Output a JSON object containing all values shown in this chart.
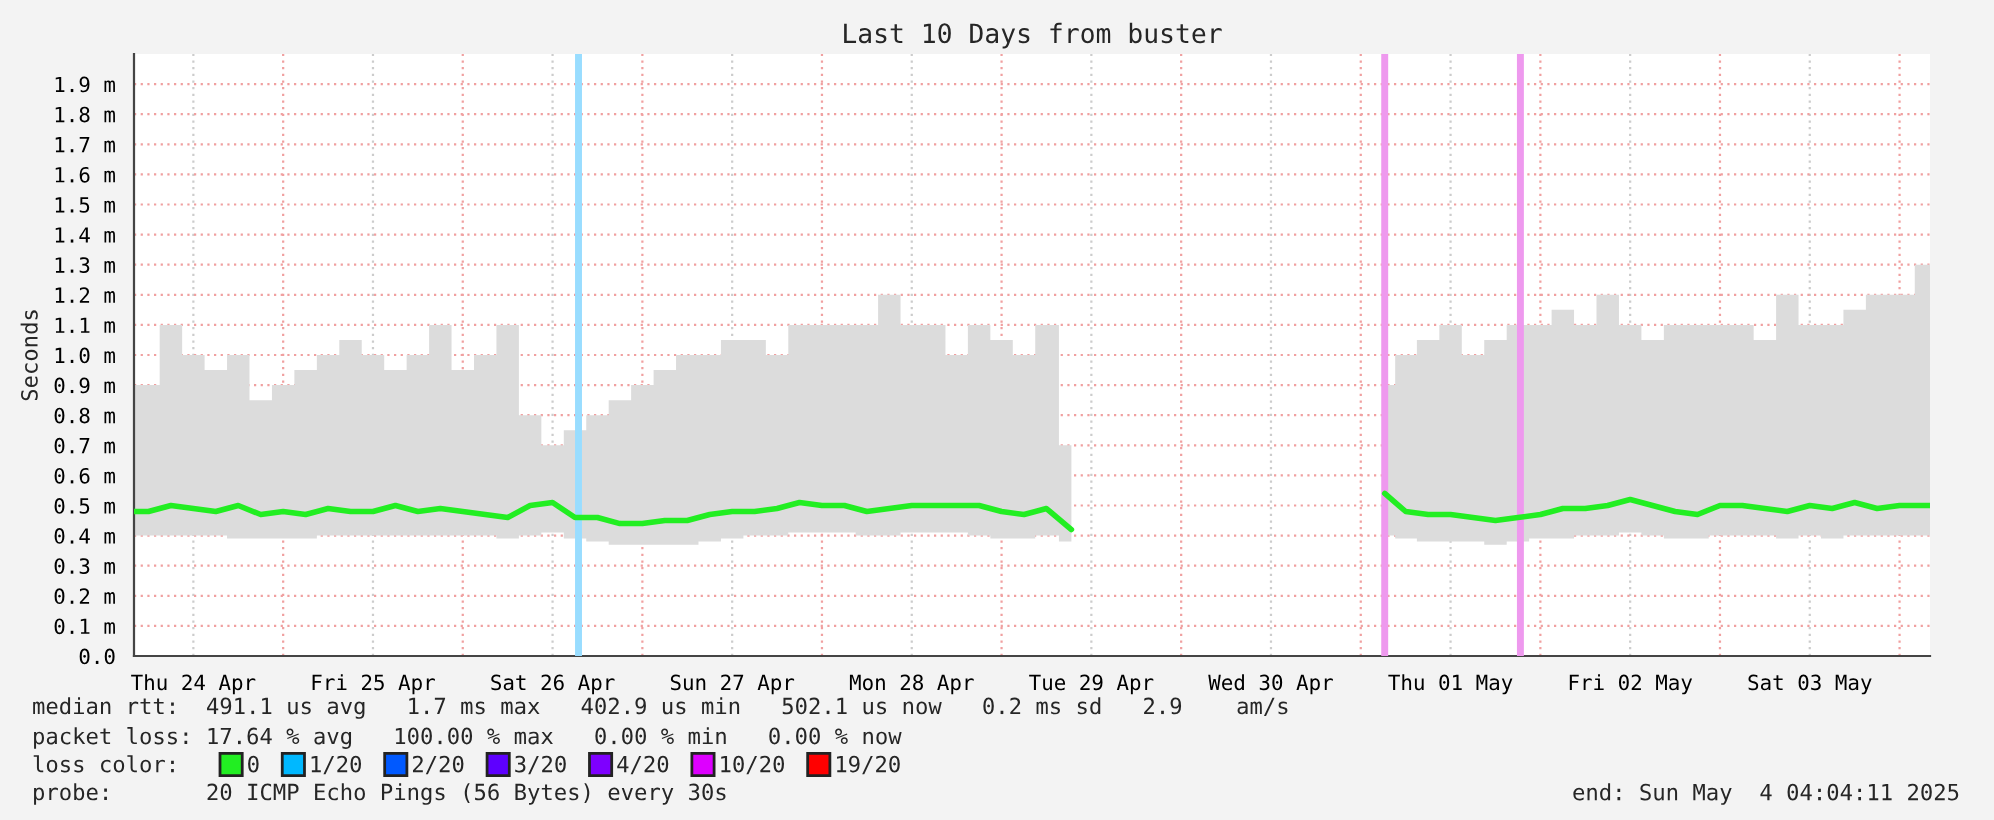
{
  "chart_data": {
    "type": "line",
    "title": "Last 10 Days from buster",
    "ylabel": "Seconds",
    "x": [
      "2025-04-24T04:04",
      "2025-04-24T06:00",
      "2025-04-24T09:00",
      "2025-04-24T12:00",
      "2025-04-24T15:00",
      "2025-04-24T18:00",
      "2025-04-24T21:00",
      "2025-04-25T00:00",
      "2025-04-25T03:00",
      "2025-04-25T06:00",
      "2025-04-25T09:00",
      "2025-04-25T12:00",
      "2025-04-25T15:00",
      "2025-04-25T18:00",
      "2025-04-25T21:00",
      "2025-04-26T00:00",
      "2025-04-26T03:00",
      "2025-04-26T06:00",
      "2025-04-26T09:00",
      "2025-04-26T12:00",
      "2025-04-26T15:00",
      "2025-04-26T18:00",
      "2025-04-26T21:00",
      "2025-04-27T00:00",
      "2025-04-27T03:00",
      "2025-04-27T06:00",
      "2025-04-27T09:00",
      "2025-04-27T12:00",
      "2025-04-27T15:00",
      "2025-04-27T18:00",
      "2025-04-27T21:00",
      "2025-04-28T00:00",
      "2025-04-28T03:00",
      "2025-04-28T06:00",
      "2025-04-28T09:00",
      "2025-04-28T12:00",
      "2025-04-28T15:00",
      "2025-04-28T18:00",
      "2025-04-28T21:00",
      "2025-04-29T00:00",
      "2025-04-29T03:00",
      "2025-04-29T06:00",
      "2025-04-29T09:20",
      "2025-04-30T12:00",
      "2025-05-01T03:12",
      "2025-05-01T06:00",
      "2025-05-01T09:00",
      "2025-05-01T12:00",
      "2025-05-01T15:00",
      "2025-05-01T18:00",
      "2025-05-01T21:00",
      "2025-05-02T00:00",
      "2025-05-02T03:00",
      "2025-05-02T06:00",
      "2025-05-02T09:00",
      "2025-05-02T12:00",
      "2025-05-02T15:00",
      "2025-05-02T18:00",
      "2025-05-02T21:00",
      "2025-05-03T00:00",
      "2025-05-03T03:00",
      "2025-05-03T06:00",
      "2025-05-03T09:00",
      "2025-05-03T12:00",
      "2025-05-03T15:00",
      "2025-05-03T18:00",
      "2025-05-03T21:00",
      "2025-05-04T00:00",
      "2025-05-04T04:04"
    ],
    "series": [
      {
        "name": "0",
        "color": "#22ee22",
        "values": [
          0.48,
          0.48,
          0.5,
          0.49,
          0.48,
          0.5,
          0.47,
          0.48,
          0.47,
          0.49,
          0.48,
          0.48,
          0.5,
          0.48,
          0.49,
          0.48,
          0.47,
          0.46,
          0.5,
          0.51,
          0.46,
          0.46,
          0.44,
          0.44,
          0.45,
          0.45,
          0.47,
          0.48,
          0.48,
          0.49,
          0.51,
          0.5,
          0.5,
          0.48,
          0.49,
          0.5,
          0.5,
          0.5,
          0.5,
          0.48,
          0.47,
          0.49,
          0.42,
          null,
          0.54,
          0.48,
          0.47,
          0.47,
          0.46,
          0.45,
          0.46,
          0.47,
          0.49,
          0.49,
          0.5,
          0.52,
          0.5,
          0.48,
          0.47,
          0.5,
          0.5,
          0.49,
          0.48,
          0.5,
          0.49,
          0.51,
          0.49,
          0.5,
          0.5
        ],
        "lower": [
          0.4,
          0.4,
          0.4,
          0.4,
          0.4,
          0.39,
          0.39,
          0.39,
          0.39,
          0.4,
          0.4,
          0.4,
          0.4,
          0.4,
          0.4,
          0.4,
          0.4,
          0.39,
          0.4,
          0.41,
          0.39,
          0.38,
          0.37,
          0.37,
          0.37,
          0.37,
          0.38,
          0.39,
          0.4,
          0.4,
          0.41,
          0.41,
          0.41,
          0.4,
          0.4,
          0.41,
          0.41,
          0.41,
          0.4,
          0.39,
          0.39,
          0.4,
          0.38,
          null,
          0.4,
          0.39,
          0.38,
          0.38,
          0.38,
          0.37,
          0.38,
          0.39,
          0.39,
          0.4,
          0.4,
          0.41,
          0.4,
          0.39,
          0.39,
          0.4,
          0.4,
          0.4,
          0.39,
          0.4,
          0.39,
          0.4,
          0.4,
          0.4,
          0.4
        ],
        "upper": [
          0.9,
          0.9,
          1.1,
          1.0,
          0.95,
          1.0,
          0.85,
          0.9,
          0.95,
          1.0,
          1.05,
          1.0,
          0.95,
          1.0,
          1.1,
          0.95,
          1.0,
          1.1,
          0.8,
          0.7,
          0.75,
          0.8,
          0.85,
          0.9,
          0.95,
          1.0,
          1.0,
          1.05,
          1.05,
          1.0,
          1.1,
          1.1,
          1.1,
          1.1,
          1.2,
          1.1,
          1.1,
          1.0,
          1.1,
          1.05,
          1.0,
          1.1,
          0.7,
          null,
          0.9,
          1.0,
          1.05,
          1.1,
          1.0,
          1.05,
          1.1,
          1.1,
          1.15,
          1.1,
          1.2,
          1.1,
          1.05,
          1.1,
          1.1,
          1.1,
          1.1,
          1.05,
          1.2,
          1.1,
          1.1,
          1.15,
          1.2,
          1.2,
          1.3
        ]
      },
      {
        "name": "1/20",
        "color": "#00b8ff",
        "values": [
          null,
          null,
          null,
          null,
          null,
          null,
          null,
          null,
          null,
          null,
          null,
          null,
          null,
          null,
          null,
          null,
          null,
          null,
          null,
          null,
          null,
          null,
          null,
          null,
          null,
          null,
          null,
          null,
          null,
          null,
          null,
          null,
          null,
          null,
          null,
          null,
          null,
          null,
          null,
          null,
          null,
          null,
          null,
          null,
          null,
          null,
          null,
          null,
          null,
          null,
          null,
          null,
          null,
          null,
          null,
          null,
          null,
          null,
          null,
          null,
          null,
          null,
          null,
          null,
          null,
          null,
          null,
          null,
          null
        ]
      },
      {
        "name": "2/20",
        "color": "#0059ff",
        "values": [
          null,
          null,
          null,
          null,
          null,
          null,
          null,
          null,
          null,
          null,
          null,
          null,
          null,
          null,
          null,
          null,
          null,
          null,
          null,
          null,
          null,
          null,
          null,
          null,
          null,
          null,
          null,
          null,
          null,
          null,
          null,
          null,
          null,
          null,
          null,
          null,
          null,
          null,
          null,
          null,
          null,
          null,
          null,
          null,
          null,
          null,
          null,
          null,
          null,
          null,
          null,
          null,
          null,
          null,
          null,
          null,
          null,
          null,
          null,
          null,
          null,
          null,
          null,
          null,
          null,
          null,
          null,
          null,
          null
        ]
      },
      {
        "name": "3/20",
        "color": "#5e00ff",
        "values": [
          null,
          null,
          null,
          null,
          null,
          null,
          null,
          null,
          null,
          null,
          null,
          null,
          null,
          null,
          null,
          null,
          null,
          null,
          null,
          null,
          null,
          null,
          null,
          null,
          null,
          null,
          null,
          null,
          null,
          null,
          null,
          null,
          null,
          null,
          null,
          null,
          null,
          null,
          null,
          null,
          null,
          null,
          null,
          null,
          null,
          null,
          null,
          null,
          null,
          null,
          null,
          null,
          null,
          null,
          null,
          null,
          null,
          null,
          null,
          null,
          null,
          null,
          null,
          null,
          null,
          null,
          null,
          null,
          null
        ]
      },
      {
        "name": "4/20",
        "color": "#7e00ff",
        "values": [
          null,
          null,
          null,
          null,
          null,
          null,
          null,
          null,
          null,
          null,
          null,
          null,
          null,
          null,
          null,
          null,
          null,
          null,
          null,
          null,
          null,
          null,
          null,
          null,
          null,
          null,
          null,
          null,
          null,
          null,
          null,
          null,
          null,
          null,
          null,
          null,
          null,
          null,
          null,
          null,
          null,
          null,
          null,
          null,
          null,
          null,
          null,
          null,
          null,
          null,
          null,
          null,
          null,
          null,
          null,
          null,
          null,
          null,
          null,
          null,
          null,
          null,
          null,
          null,
          null,
          null,
          null,
          null,
          null
        ]
      },
      {
        "name": "10/20",
        "color": "#dd00ff",
        "values": [
          null,
          null,
          null,
          null,
          null,
          null,
          null,
          null,
          null,
          null,
          null,
          null,
          null,
          null,
          null,
          null,
          null,
          null,
          null,
          null,
          null,
          null,
          null,
          null,
          null,
          null,
          null,
          null,
          null,
          null,
          null,
          null,
          null,
          null,
          null,
          null,
          null,
          null,
          null,
          null,
          null,
          null,
          null,
          null,
          null,
          null,
          null,
          null,
          null,
          null,
          null,
          null,
          null,
          null,
          null,
          null,
          null,
          null,
          null,
          null,
          null,
          null,
          null,
          null,
          null,
          null,
          null,
          null,
          null
        ]
      },
      {
        "name": "19/20",
        "color": "#ff0000",
        "values": [
          null,
          null,
          null,
          null,
          null,
          null,
          null,
          null,
          null,
          null,
          null,
          null,
          null,
          null,
          null,
          null,
          null,
          null,
          null,
          null,
          null,
          null,
          null,
          null,
          null,
          null,
          null,
          null,
          null,
          null,
          null,
          null,
          null,
          null,
          null,
          null,
          null,
          null,
          null,
          null,
          null,
          null,
          null,
          null,
          null,
          null,
          null,
          null,
          null,
          null,
          null,
          null,
          null,
          null,
          null,
          null,
          null,
          null,
          null,
          null,
          null,
          null,
          null,
          null,
          null,
          null,
          null,
          null,
          null
        ]
      }
    ],
    "legend": "bottom",
    "legend_title": "loss color:",
    "ref_lines": [
      {
        "axis": "x",
        "value": "2025-04-26T15:28",
        "color": "#99ddff"
      },
      {
        "axis": "x",
        "value": "2025-05-01T03:12",
        "color": "#ee99ee"
      },
      {
        "axis": "x",
        "value": "2025-05-01T21:20",
        "color": "#ee99ee"
      }
    ],
    "xlim": [
      "2025-04-24T04:04",
      "2025-05-04T04:04"
    ],
    "xticks": [
      {
        "value": "2025-04-24T12:00",
        "label": "Thu 24 Apr"
      },
      {
        "value": "2025-04-25T12:00",
        "label": "Fri 25 Apr"
      },
      {
        "value": "2025-04-26T12:00",
        "label": "Sat 26 Apr"
      },
      {
        "value": "2025-04-27T12:00",
        "label": "Sun 27 Apr"
      },
      {
        "value": "2025-04-28T12:00",
        "label": "Mon 28 Apr"
      },
      {
        "value": "2025-04-29T12:00",
        "label": "Tue 29 Apr"
      },
      {
        "value": "2025-04-30T12:00",
        "label": "Wed 30 Apr"
      },
      {
        "value": "2025-05-01T12:00",
        "label": "Thu 01 May"
      },
      {
        "value": "2025-05-02T12:00",
        "label": "Fri 02 May"
      },
      {
        "value": "2025-05-03T12:00",
        "label": "Sat 03 May"
      }
    ],
    "ylim": [
      0,
      2.0
    ],
    "yticks": [
      {
        "value": 0,
        "label": "0.0"
      },
      {
        "value": 0.1,
        "label": "0.1 m"
      },
      {
        "value": 0.2,
        "label": "0.2 m"
      },
      {
        "value": 0.3,
        "label": "0.3 m"
      },
      {
        "value": 0.4,
        "label": "0.4 m"
      },
      {
        "value": 0.5,
        "label": "0.5 m"
      },
      {
        "value": 0.6,
        "label": "0.6 m"
      },
      {
        "value": 0.7,
        "label": "0.7 m"
      },
      {
        "value": 0.8,
        "label": "0.8 m"
      },
      {
        "value": 0.9,
        "label": "0.9 m"
      },
      {
        "value": 1.0,
        "label": "1.0 m"
      },
      {
        "value": 1.1,
        "label": "1.1 m"
      },
      {
        "value": 1.2,
        "label": "1.2 m"
      },
      {
        "value": 1.3,
        "label": "1.3 m"
      },
      {
        "value": 1.4,
        "label": "1.4 m"
      },
      {
        "value": 1.5,
        "label": "1.5 m"
      },
      {
        "value": 1.6,
        "label": "1.6 m"
      },
      {
        "value": 1.7,
        "label": "1.7 m"
      },
      {
        "value": 1.8,
        "label": "1.8 m"
      },
      {
        "value": 1.9,
        "label": "1.9 m"
      }
    ],
    "grid": true,
    "annotations": [
      "median rtt:  491.1 us avg   1.7 ms max   402.9 us min   502.1 us now   0.2 ms sd   2.9    am/s",
      "packet loss: 17.64 % avg   100.00 % max   0.00 % min   0.00 % now",
      "probe:       20 ICMP Echo Pings (56 Bytes) every 30s",
      "end: Sun May  4 04:04:11 2025"
    ]
  }
}
